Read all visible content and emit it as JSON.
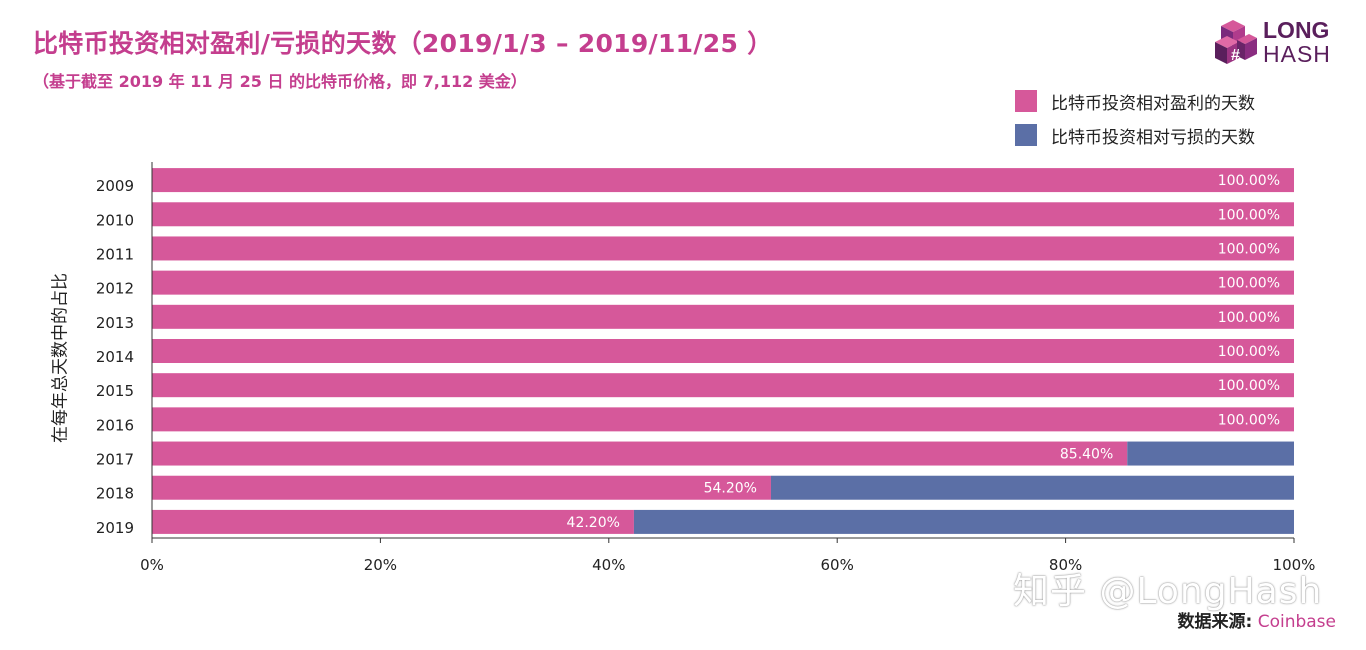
{
  "chart_data": {
    "type": "bar",
    "orientation": "horizontal",
    "stacked": true,
    "title": "比特币投资相对盈利/亏损的天数（2019/1/3 – 2019/11/25 ）",
    "subtitle": "（基于截至 2019 年 11 月 25 日 的比特币价格，即 7,112 美金）",
    "ylabel": "在每年总天数中的占比",
    "xlabel": "",
    "categories": [
      "2009",
      "2010",
      "2011",
      "2012",
      "2013",
      "2014",
      "2015",
      "2016",
      "2017",
      "2018",
      "2019"
    ],
    "series": [
      {
        "name": "比特币投资相对盈利的天数",
        "color": "#d6589a",
        "values": [
          100,
          100,
          100,
          100,
          100,
          100,
          100,
          100,
          85.4,
          54.2,
          42.2
        ]
      },
      {
        "name": "比特币投资相对亏损的天数",
        "color": "#5b6fa6",
        "values": [
          0,
          0,
          0,
          0,
          0,
          0,
          0,
          0,
          14.6,
          45.8,
          57.8
        ]
      }
    ],
    "data_labels": [
      "100.00%",
      "100.00%",
      "100.00%",
      "100.00%",
      "100.00%",
      "100.00%",
      "100.00%",
      "100.00%",
      "85.40%",
      "54.20%",
      "42.20%"
    ],
    "xlim": [
      0,
      100
    ],
    "xticks": [
      0,
      20,
      40,
      60,
      80,
      100
    ],
    "xtick_labels": [
      "0%",
      "20%",
      "40%",
      "60%",
      "80%",
      "100%"
    ],
    "legend_position": "top-right",
    "grid": false
  },
  "logo": {
    "line1": "LONG",
    "line2": "HASH"
  },
  "watermark": "知乎 @LongHash",
  "source": {
    "label": "数据来源:",
    "value": "Coinbase"
  }
}
